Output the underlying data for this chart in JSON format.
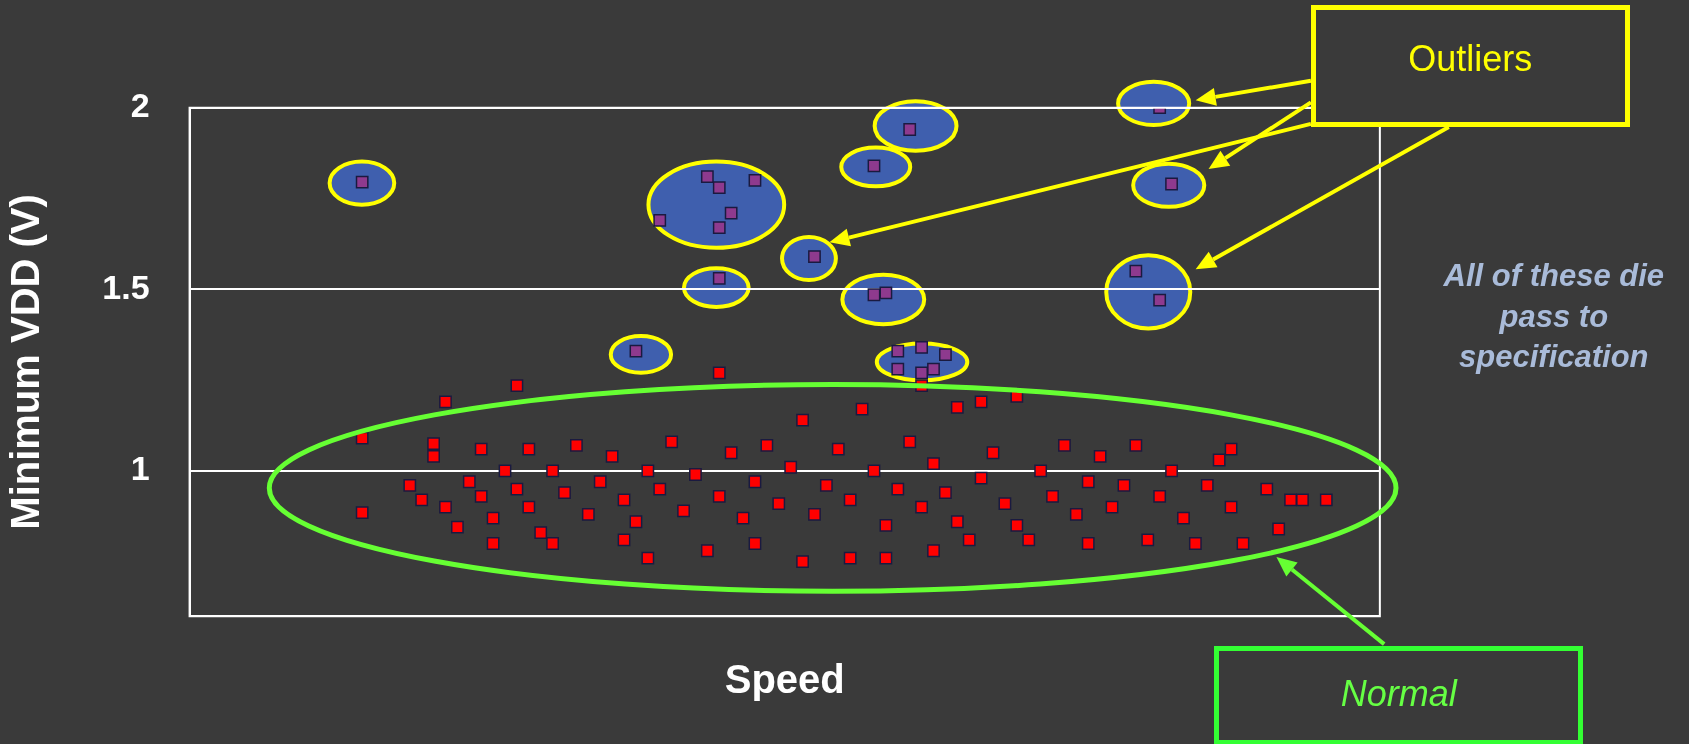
{
  "chart_data": {
    "type": "scatter",
    "xlabel": "Speed",
    "ylabel": "Minimum VDD (V)",
    "ylim": [
      0.6,
      2
    ],
    "yticks": [
      1,
      1.5,
      2
    ],
    "tick_labels": "y",
    "grid": "y",
    "marker": "square",
    "legend": false,
    "annotations": [
      "Outliers",
      "Normal",
      "All of these die pass to specification"
    ],
    "categories": [
      null,
      null,
      null,
      null,
      null,
      null,
      null,
      null,
      null,
      null,
      null,
      null,
      null,
      null,
      null,
      null,
      null,
      null,
      null,
      null,
      null,
      null,
      null,
      null,
      null,
      null,
      null,
      null,
      null,
      null,
      null,
      null,
      null,
      null,
      null,
      null,
      null,
      null,
      null,
      null,
      null,
      null,
      null,
      null,
      null,
      null,
      null,
      null,
      null,
      null,
      null,
      null,
      null,
      null,
      null,
      null,
      null,
      null,
      null,
      null,
      null,
      null,
      null,
      null,
      null,
      null,
      null,
      null,
      null,
      null,
      null,
      null,
      null,
      null,
      null,
      null,
      null,
      null,
      null,
      null,
      null,
      null,
      null,
      null,
      null,
      null,
      null,
      null,
      null,
      null,
      null,
      null,
      null,
      null,
      null,
      null,
      null,
      null,
      null,
      null
    ],
    "series": [
      {
        "color": "#ff0000",
        "values": [
          null,
          null,
          null,
          null,
          null,
          null,
          null,
          null,
          null,
          null,
          null,
          null,
          null,
          null,
          1.09,
          null,
          null,
          null,
          0.96,
          0.92,
          1.075,
          1.19,
          0.845,
          0.97,
          1.06,
          0.87,
          1.0,
          0.95,
          1.06,
          0.83,
          1.0,
          0.94,
          1.07,
          0.88,
          0.97,
          1.04,
          0.92,
          0.86,
          1.0,
          0.95,
          1.08,
          0.89,
          0.99,
          0.78,
          1.27,
          1.05,
          0.87,
          0.97,
          1.07,
          0.91,
          1.01,
          1.14,
          0.88,
          0.96,
          1.06,
          0.92,
          1.17,
          1.0,
          0.85,
          0.95,
          1.08,
          0.9,
          0.78,
          0.94,
          1.175,
          0.81,
          0.98,
          1.05,
          0.91,
          0.85,
          0.81,
          1.0,
          0.93,
          1.07,
          0.88,
          0.97,
          1.04,
          0.9,
          0.96,
          1.07,
          0.81,
          0.93,
          1.0,
          0.87,
          0.8,
          0.96,
          1.03,
          1.06,
          0.8,
          null,
          0.95,
          0.84,
          0.92,
          0.92,
          null,
          0.92,
          null,
          null,
          null,
          null
        ]
      },
      {
        "color": "#ff0000",
        "values": [
          null,
          null,
          null,
          null,
          null,
          null,
          null,
          null,
          null,
          null,
          null,
          null,
          null,
          null,
          0.885,
          null,
          null,
          null,
          null,
          null,
          1.04,
          0.9,
          null,
          null,
          0.93,
          0.8,
          null,
          1.235,
          0.9,
          null,
          0.8,
          null,
          null,
          null,
          null,
          null,
          0.81,
          null,
          0.76,
          null,
          null,
          null,
          null,
          null,
          0.93,
          null,
          null,
          0.8,
          null,
          null,
          null,
          0.75,
          null,
          null,
          null,
          0.76,
          null,
          null,
          0.76,
          null,
          null,
          1.235,
          1.02,
          null,
          0.86,
          null,
          1.19,
          null,
          null,
          1.205,
          null,
          null,
          null,
          null,
          null,
          0.8,
          null,
          null,
          null,
          null,
          null,
          null,
          null,
          null,
          null,
          null,
          null,
          0.9,
          null,
          null,
          null,
          null,
          null,
          null,
          null,
          null,
          null,
          null,
          null,
          null
        ]
      },
      {
        "color": "#8e3a8e",
        "values": [
          null,
          null,
          null,
          null,
          null,
          null,
          null,
          null,
          null,
          null,
          null,
          null,
          null,
          null,
          1.795,
          null,
          null,
          null,
          null,
          null,
          null,
          null,
          null,
          null,
          null,
          null,
          null,
          null,
          null,
          null,
          null,
          null,
          null,
          null,
          null,
          null,
          null,
          1.33,
          null,
          1.69,
          null,
          null,
          null,
          1.81,
          1.78,
          1.71,
          null,
          1.8,
          null,
          null,
          null,
          null,
          1.59,
          null,
          null,
          null,
          null,
          1.84,
          1.49,
          1.33,
          1.94,
          1.34,
          1.28,
          1.32,
          null,
          null,
          null,
          null,
          null,
          null,
          null,
          null,
          null,
          null,
          null,
          null,
          null,
          null,
          null,
          1.55,
          null,
          2.0,
          1.79,
          null,
          null,
          null,
          null,
          null,
          null,
          null,
          null,
          null,
          null,
          null,
          null,
          null,
          null,
          null,
          null,
          null
        ]
      },
      {
        "color": "#8e3a8e",
        "values": [
          null,
          null,
          null,
          null,
          null,
          null,
          null,
          null,
          null,
          null,
          null,
          null,
          null,
          null,
          null,
          null,
          null,
          null,
          null,
          null,
          null,
          null,
          null,
          null,
          null,
          null,
          null,
          null,
          null,
          null,
          null,
          null,
          null,
          null,
          null,
          null,
          null,
          null,
          null,
          null,
          null,
          null,
          null,
          null,
          1.67,
          null,
          null,
          null,
          null,
          null,
          null,
          null,
          null,
          null,
          null,
          null,
          null,
          1.485,
          null,
          1.28,
          null,
          1.27,
          null,
          null,
          null,
          null,
          null,
          null,
          null,
          null,
          null,
          null,
          null,
          null,
          null,
          null,
          null,
          null,
          null,
          null,
          null,
          1.47,
          null,
          null,
          null,
          null,
          null,
          null,
          null,
          null,
          null,
          null,
          null,
          null,
          null,
          null,
          null,
          null,
          null,
          null
        ]
      },
      {
        "color": "#8e3a8e",
        "values": [
          null,
          null,
          null,
          null,
          null,
          null,
          null,
          null,
          null,
          null,
          null,
          null,
          null,
          null,
          null,
          null,
          null,
          null,
          null,
          null,
          null,
          null,
          null,
          null,
          null,
          null,
          null,
          null,
          null,
          null,
          null,
          null,
          null,
          null,
          null,
          null,
          null,
          null,
          null,
          null,
          null,
          null,
          null,
          null,
          1.53,
          null,
          null,
          null,
          null,
          null,
          null,
          null,
          null,
          null,
          null,
          null,
          null,
          null,
          null,
          null,
          null,
          null,
          null,
          null,
          null,
          null,
          null,
          null,
          null,
          null,
          null,
          null,
          null,
          null,
          null,
          null,
          null,
          null,
          null,
          null,
          null,
          null,
          null,
          null,
          null,
          null,
          null,
          null,
          null,
          null,
          null,
          null,
          null,
          null,
          null,
          null,
          null,
          null,
          null,
          null
        ]
      }
    ]
  }
}
